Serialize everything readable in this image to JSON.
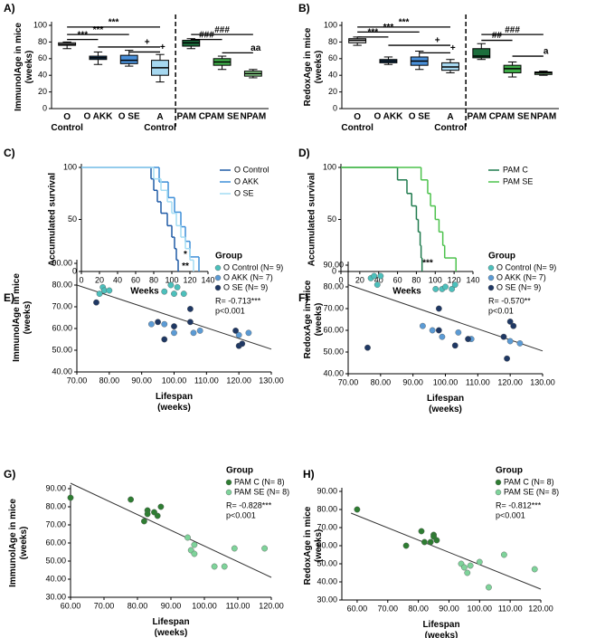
{
  "chart_data": [
    {
      "type": "box",
      "panel_label": "A)",
      "y_label": "ImmunolAge in mice\n(weeks)",
      "categories": [
        "O\nControl",
        "O AKK",
        "O SE",
        "A\nControl",
        "PAM C",
        "PAM SE",
        "NPAM"
      ],
      "boxes": [
        {
          "min": 72,
          "q1": 76,
          "median": 77,
          "q3": 79,
          "max": 80
        },
        {
          "min": 53,
          "q1": 59,
          "median": 61,
          "q3": 63,
          "max": 68
        },
        {
          "min": 51,
          "q1": 54,
          "median": 58,
          "q3": 64,
          "max": 70
        },
        {
          "min": 32,
          "q1": 40,
          "median": 49,
          "q3": 58,
          "max": 65
        },
        {
          "min": 72,
          "q1": 75,
          "median": 79,
          "q3": 82,
          "max": 84
        },
        {
          "min": 47,
          "q1": 52,
          "median": 56,
          "q3": 60,
          "max": 63
        },
        {
          "min": 37,
          "q1": 39,
          "median": 42,
          "q3": 45,
          "max": 47
        }
      ],
      "colors": [
        "#d9d9d9",
        "#1f4e79",
        "#4a90d9",
        "#a6d8f0",
        "#1b6e3c",
        "#3fae49",
        "#8fd68f"
      ],
      "ylim": [
        0,
        100
      ],
      "yticks": [
        0,
        20,
        40,
        60,
        80,
        100
      ],
      "annotations": [
        "***",
        "***",
        "***",
        "+",
        "+",
        "###",
        "###",
        "aa"
      ]
    },
    {
      "type": "box",
      "panel_label": "B)",
      "y_label": "RedoxAge in mice\n(weeks)",
      "categories": [
        "O\nControl",
        "O AKK",
        "O SE",
        "A\nControl",
        "PAM C",
        "PAM SE",
        "NPAM"
      ],
      "boxes": [
        {
          "min": 76,
          "q1": 79,
          "median": 82,
          "q3": 84,
          "max": 86
        },
        {
          "min": 53,
          "q1": 55,
          "median": 57,
          "q3": 59,
          "max": 62
        },
        {
          "min": 47,
          "q1": 52,
          "median": 57,
          "q3": 62,
          "max": 69
        },
        {
          "min": 43,
          "q1": 46,
          "median": 50,
          "q3": 55,
          "max": 59
        },
        {
          "min": 59,
          "q1": 61,
          "median": 63,
          "q3": 72,
          "max": 78
        },
        {
          "min": 38,
          "q1": 43,
          "median": 48,
          "q3": 52,
          "max": 56
        },
        {
          "min": 40,
          "q1": 41,
          "median": 43,
          "q3": 44,
          "max": 45
        }
      ],
      "colors": [
        "#d9d9d9",
        "#1f4e79",
        "#4a90d9",
        "#a6d8f0",
        "#1b6e3c",
        "#3fae49",
        "#8fd68f"
      ],
      "ylim": [
        0,
        100
      ],
      "yticks": [
        0,
        20,
        40,
        60,
        80,
        100
      ],
      "annotations": [
        "***",
        "***",
        "***",
        "+",
        "+",
        "###",
        "##",
        "a"
      ]
    },
    {
      "type": "survival",
      "panel_label": "C)",
      "y_label": "Accumulated survival",
      "x_label": "Weeks",
      "series": [
        {
          "name": "O Control",
          "color": "#1f5aa6",
          "x": [
            0,
            77,
            80,
            84,
            88,
            95,
            100,
            103,
            105,
            107
          ],
          "values": [
            100,
            89,
            78,
            67,
            56,
            44,
            33,
            22,
            11,
            0
          ]
        },
        {
          "name": "O AKK",
          "color": "#3d8fd8",
          "x": [
            0,
            86,
            96,
            103,
            110,
            115,
            120,
            130
          ],
          "values": [
            100,
            86,
            71,
            57,
            43,
            29,
            14,
            0
          ]
        },
        {
          "name": "O SE",
          "color": "#a3dcf3",
          "x": [
            0,
            80,
            88,
            95,
            100,
            105,
            110,
            115,
            120,
            124
          ],
          "values": [
            100,
            89,
            78,
            67,
            56,
            44,
            33,
            22,
            11,
            0
          ]
        }
      ],
      "xlim": [
        0,
        140
      ],
      "xticks": [
        0,
        20,
        40,
        60,
        80,
        100,
        120,
        140
      ],
      "ylim": [
        0,
        100
      ],
      "yticks": [
        0,
        50,
        100
      ],
      "annotations": [
        "*",
        "**"
      ]
    },
    {
      "type": "survival",
      "panel_label": "D)",
      "y_label": "Accumulated survival",
      "x_label": "Weeks",
      "series": [
        {
          "name": "PAM C",
          "color": "#1f7a4d",
          "x": [
            0,
            60,
            70,
            75,
            80,
            82,
            84,
            85,
            86
          ],
          "values": [
            100,
            88,
            75,
            63,
            50,
            38,
            25,
            13,
            0
          ]
        },
        {
          "name": "PAM SE",
          "color": "#4cc24c",
          "x": [
            0,
            85,
            92,
            95,
            100,
            104,
            108,
            110,
            122
          ],
          "values": [
            100,
            88,
            75,
            63,
            50,
            38,
            25,
            13,
            0
          ]
        }
      ],
      "xlim": [
        0,
        140
      ],
      "xticks": [
        0,
        20,
        40,
        60,
        80,
        100,
        120,
        140
      ],
      "ylim": [
        0,
        100
      ],
      "yticks": [
        0,
        50,
        100
      ],
      "annotations": [
        "***"
      ]
    },
    {
      "type": "scatter",
      "panel_label": "E)",
      "y_label": "ImmunolAge in mice\n(weeks)",
      "x_label": "Lifespan\n(weeks)",
      "legend_title": "Group",
      "stats": [
        "R= -0.713***",
        "p<0.001"
      ],
      "series": [
        {
          "name": "O Control (N= 9)",
          "color": "#4cc0bc",
          "x": [
            77,
            78,
            78.5,
            80,
            97,
            99,
            100,
            101,
            103
          ],
          "values": [
            76,
            79,
            77.5,
            77.5,
            77,
            80,
            76,
            79,
            76
          ]
        },
        {
          "name": "O AKK (N= 7)",
          "color": "#5b9bd5",
          "x": [
            93,
            97,
            100,
            106,
            108,
            120,
            123
          ],
          "values": [
            62,
            62,
            58,
            58,
            59,
            57,
            58
          ]
        },
        {
          "name": "O SE (N= 9)",
          "color": "#1f3864",
          "x": [
            76,
            95,
            97,
            100,
            105,
            105,
            119,
            120,
            121
          ],
          "values": [
            72,
            63,
            55,
            61,
            63,
            69,
            59,
            52,
            53
          ]
        }
      ],
      "trendline": {
        "x": [
          70,
          130
        ],
        "values": [
          80,
          50.5
        ]
      },
      "xlim": [
        70,
        130
      ],
      "xticks": [
        {
          "value": 70,
          "label": "70.00"
        },
        {
          "value": 80,
          "label": "80.00"
        },
        {
          "value": 90,
          "label": "90.00"
        },
        {
          "value": 100,
          "label": "100.00"
        },
        {
          "value": 110,
          "label": "110.00"
        },
        {
          "value": 120,
          "label": "120.00"
        },
        {
          "value": 130,
          "label": "130.00"
        }
      ],
      "ylim": [
        40,
        90
      ],
      "yticks": [
        {
          "value": 40,
          "label": "40.00"
        },
        {
          "value": 50,
          "label": "50.00"
        },
        {
          "value": 60,
          "label": "60.00"
        },
        {
          "value": 70,
          "label": "70.00"
        },
        {
          "value": 80,
          "label": "80.00"
        },
        {
          "value": 90,
          "label": "90.00"
        }
      ]
    },
    {
      "type": "scatter",
      "panel_label": "F)",
      "y_label": "RedoxAge in mice\n(weeks)",
      "x_label": "Lifespan\n(weeks)",
      "legend_title": "Group",
      "stats": [
        "R= -0.570**",
        "p<0.01"
      ],
      "series": [
        {
          "name": "O Control (N= 9)",
          "color": "#4cc0bc",
          "x": [
            77,
            78,
            79,
            80,
            97,
            99,
            100,
            102,
            103
          ],
          "values": [
            84,
            85,
            81,
            85,
            79,
            79,
            80,
            79,
            81
          ]
        },
        {
          "name": "O AKK (N= 7)",
          "color": "#5b9bd5",
          "x": [
            93,
            96,
            99,
            104,
            108,
            120,
            123
          ],
          "values": [
            62,
            60,
            57,
            59,
            56,
            55,
            54
          ]
        },
        {
          "name": "O SE (N= 9)",
          "color": "#1f3864",
          "x": [
            76,
            98,
            98,
            103,
            107,
            118,
            119,
            120,
            121
          ],
          "values": [
            52,
            70,
            60,
            53,
            56,
            57,
            47,
            64,
            62
          ]
        }
      ],
      "trendline": {
        "x": [
          70,
          130
        ],
        "values": [
          81,
          50.5
        ]
      },
      "xlim": [
        70,
        130
      ],
      "xticks": [
        {
          "value": 70,
          "label": "70.00"
        },
        {
          "value": 80,
          "label": "80.00"
        },
        {
          "value": 90,
          "label": "90.00"
        },
        {
          "value": 100,
          "label": "100.00"
        },
        {
          "value": 110,
          "label": "110.00"
        },
        {
          "value": 120,
          "label": "120.00"
        },
        {
          "value": 130,
          "label": "130.00"
        }
      ],
      "ylim": [
        40,
        90
      ],
      "yticks": [
        {
          "value": 40,
          "label": "40.00"
        },
        {
          "value": 50,
          "label": "50.00"
        },
        {
          "value": 60,
          "label": "60.00"
        },
        {
          "value": 70,
          "label": "70.00"
        },
        {
          "value": 80,
          "label": "80.00"
        },
        {
          "value": 90,
          "label": "90.00"
        }
      ]
    },
    {
      "type": "scatter",
      "panel_label": "G)",
      "y_label": "ImmunolAge in mice\n(weeks)",
      "x_label": "Lifespan\n(weeks)",
      "legend_title": "Group",
      "stats": [
        "R= -0.828***",
        "p<0.001"
      ],
      "series": [
        {
          "name": "PAM C (N= 8)",
          "color": "#2e7d32",
          "x": [
            60,
            78,
            82,
            83,
            83,
            85,
            86,
            87
          ],
          "values": [
            85,
            84,
            72,
            78,
            76,
            77,
            75,
            80
          ]
        },
        {
          "name": "PAM SE (N= 8)",
          "color": "#7ed39a",
          "x": [
            95,
            96,
            97,
            97,
            103,
            106,
            109,
            118
          ],
          "values": [
            63,
            56,
            59,
            54,
            47,
            47,
            57,
            57
          ]
        }
      ],
      "trendline": {
        "x": [
          60,
          120
        ],
        "values": [
          93,
          41
        ]
      },
      "xlim": [
        60,
        120
      ],
      "xticks": [
        {
          "value": 60,
          "label": "60.00"
        },
        {
          "value": 70,
          "label": "70.00"
        },
        {
          "value": 80,
          "label": "80.00"
        },
        {
          "value": 90,
          "label": "90.00"
        },
        {
          "value": 100,
          "label": "100.00"
        },
        {
          "value": 110,
          "label": "110.00"
        },
        {
          "value": 120,
          "label": "120.00"
        }
      ],
      "ylim": [
        30,
        90
      ],
      "yticks": [
        {
          "value": 30,
          "label": "30.00"
        },
        {
          "value": 40,
          "label": "40.00"
        },
        {
          "value": 50,
          "label": "50.00"
        },
        {
          "value": 60,
          "label": "60.00"
        },
        {
          "value": 70,
          "label": "70.00"
        },
        {
          "value": 80,
          "label": "80.00"
        },
        {
          "value": 90,
          "label": "90.00"
        }
      ]
    },
    {
      "type": "scatter",
      "panel_label": "H)",
      "y_label": "RedoxAge in mice\n(weeks)",
      "x_label": "Lifespan\n(weeks)",
      "legend_title": "Group",
      "stats": [
        "R= -0.812***",
        "p<0.001"
      ],
      "series": [
        {
          "name": "PAM C (N= 8)",
          "color": "#2e7d32",
          "x": [
            60,
            76,
            81,
            82,
            84,
            85,
            85,
            86
          ],
          "values": [
            80,
            60,
            68,
            62,
            62,
            66,
            65,
            63
          ]
        },
        {
          "name": "PAM SE (N= 8)",
          "color": "#7ed39a",
          "x": [
            94,
            95,
            96,
            97,
            100,
            103,
            108,
            118
          ],
          "values": [
            50,
            48,
            45,
            49,
            51,
            37,
            55,
            47
          ]
        }
      ],
      "trendline": {
        "x": [
          58,
          120
        ],
        "values": [
          78,
          36
        ]
      },
      "xlim": [
        55,
        120
      ],
      "xticks": [
        {
          "value": 60,
          "label": "60.00"
        },
        {
          "value": 70,
          "label": "70.00"
        },
        {
          "value": 80,
          "label": "80.00"
        },
        {
          "value": 90,
          "label": "90.00"
        },
        {
          "value": 100,
          "label": "100.00"
        },
        {
          "value": 110,
          "label": "110.00"
        },
        {
          "value": 120,
          "label": "120.00"
        }
      ],
      "ylim": [
        30,
        90
      ],
      "yticks": [
        {
          "value": 30,
          "label": "30.00"
        },
        {
          "value": 40,
          "label": "40.00"
        },
        {
          "value": 50,
          "label": "50.00"
        },
        {
          "value": 60,
          "label": "60.00"
        },
        {
          "value": 70,
          "label": "70.00"
        },
        {
          "value": 80,
          "label": "80.00"
        },
        {
          "value": 90,
          "label": "90.00"
        }
      ]
    }
  ]
}
